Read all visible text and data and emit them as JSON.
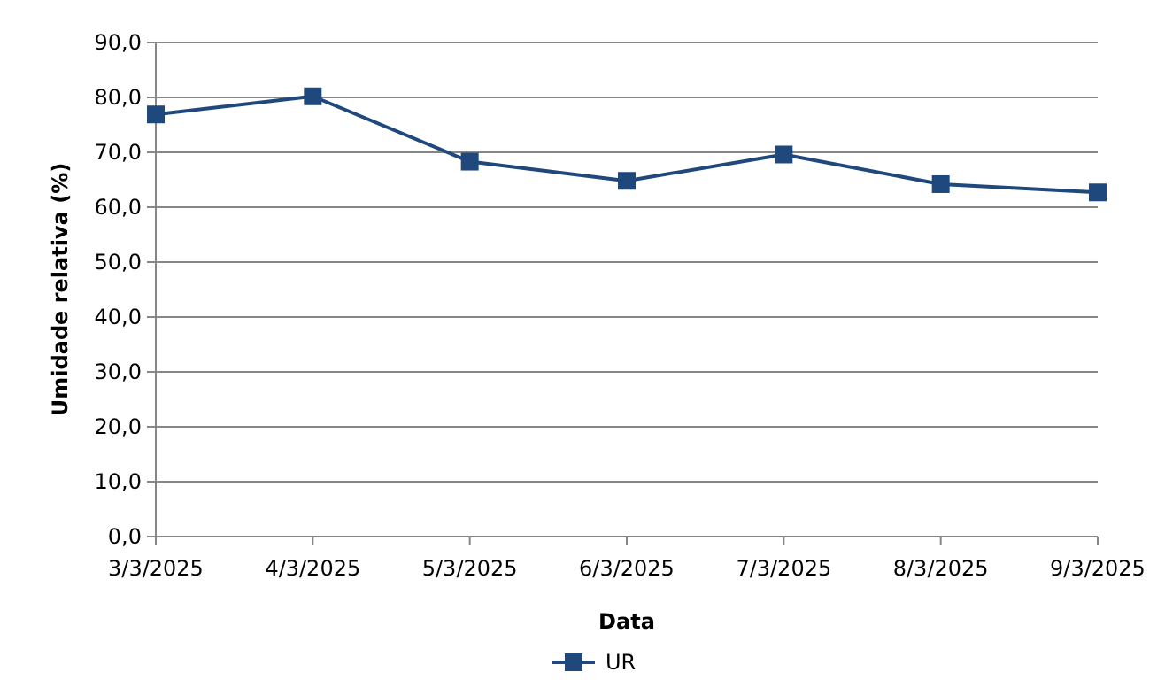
{
  "chart_data": {
    "type": "line",
    "xlabel": "Data",
    "ylabel": "Umidade relativa (%)",
    "categories": [
      "3/3/2025",
      "4/3/2025",
      "5/3/2025",
      "6/3/2025",
      "7/3/2025",
      "8/3/2025",
      "9/3/2025"
    ],
    "series": [
      {
        "name": "UR",
        "color": "#1f497d",
        "values": [
          76.9,
          80.2,
          68.3,
          64.8,
          69.6,
          64.2,
          62.7
        ]
      }
    ],
    "ylim": [
      0,
      90
    ],
    "yticks": [
      {
        "value": 0,
        "label": "0,0"
      },
      {
        "value": 10,
        "label": "10,0"
      },
      {
        "value": 20,
        "label": "20,0"
      },
      {
        "value": 30,
        "label": "30,0"
      },
      {
        "value": 40,
        "label": "40,0"
      },
      {
        "value": 50,
        "label": "50,0"
      },
      {
        "value": 60,
        "label": "60,0"
      },
      {
        "value": 70,
        "label": "70,0"
      },
      {
        "value": 80,
        "label": "80,0"
      },
      {
        "value": 90,
        "label": "90,0"
      }
    ],
    "grid": "y",
    "legend": "bottom",
    "marker": "square",
    "line_style": "solid"
  }
}
